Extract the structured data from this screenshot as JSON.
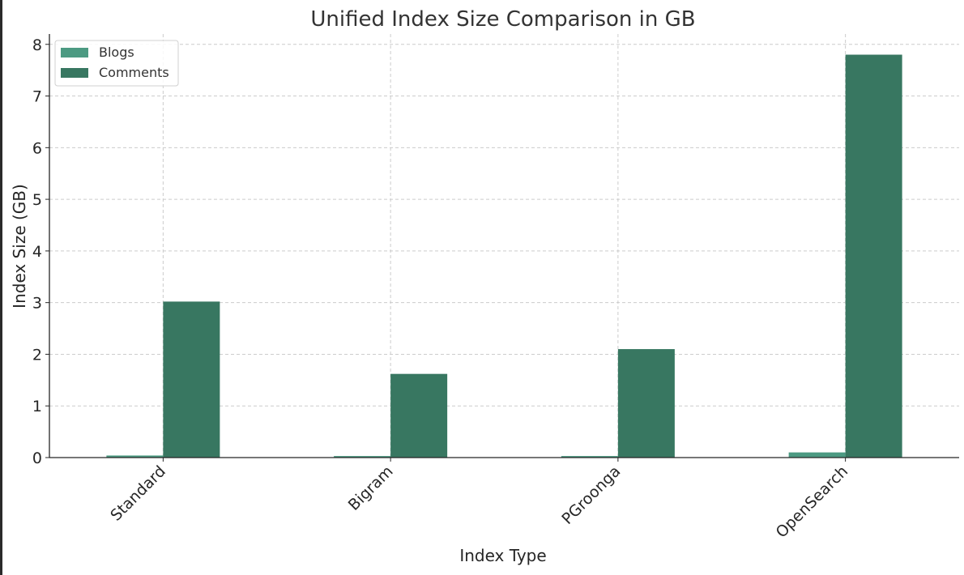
{
  "chart_data": {
    "type": "bar",
    "title": "Unified Index Size Comparison in GB",
    "xlabel": "Index Type",
    "ylabel": "Index Size (GB)",
    "categories": [
      "Standard",
      "Bigram",
      "PGroonga",
      "OpenSearch"
    ],
    "series": [
      {
        "name": "Blogs",
        "values": [
          0.04,
          0.03,
          0.03,
          0.1
        ],
        "color": "#4c9a82"
      },
      {
        "name": "Comments",
        "values": [
          3.02,
          1.62,
          2.1,
          7.8
        ],
        "color": "#387761"
      }
    ],
    "ylim": [
      0,
      8.2
    ],
    "yticks": [
      0,
      1,
      2,
      3,
      4,
      5,
      6,
      7,
      8
    ],
    "grid": true,
    "legend": "top-left"
  }
}
